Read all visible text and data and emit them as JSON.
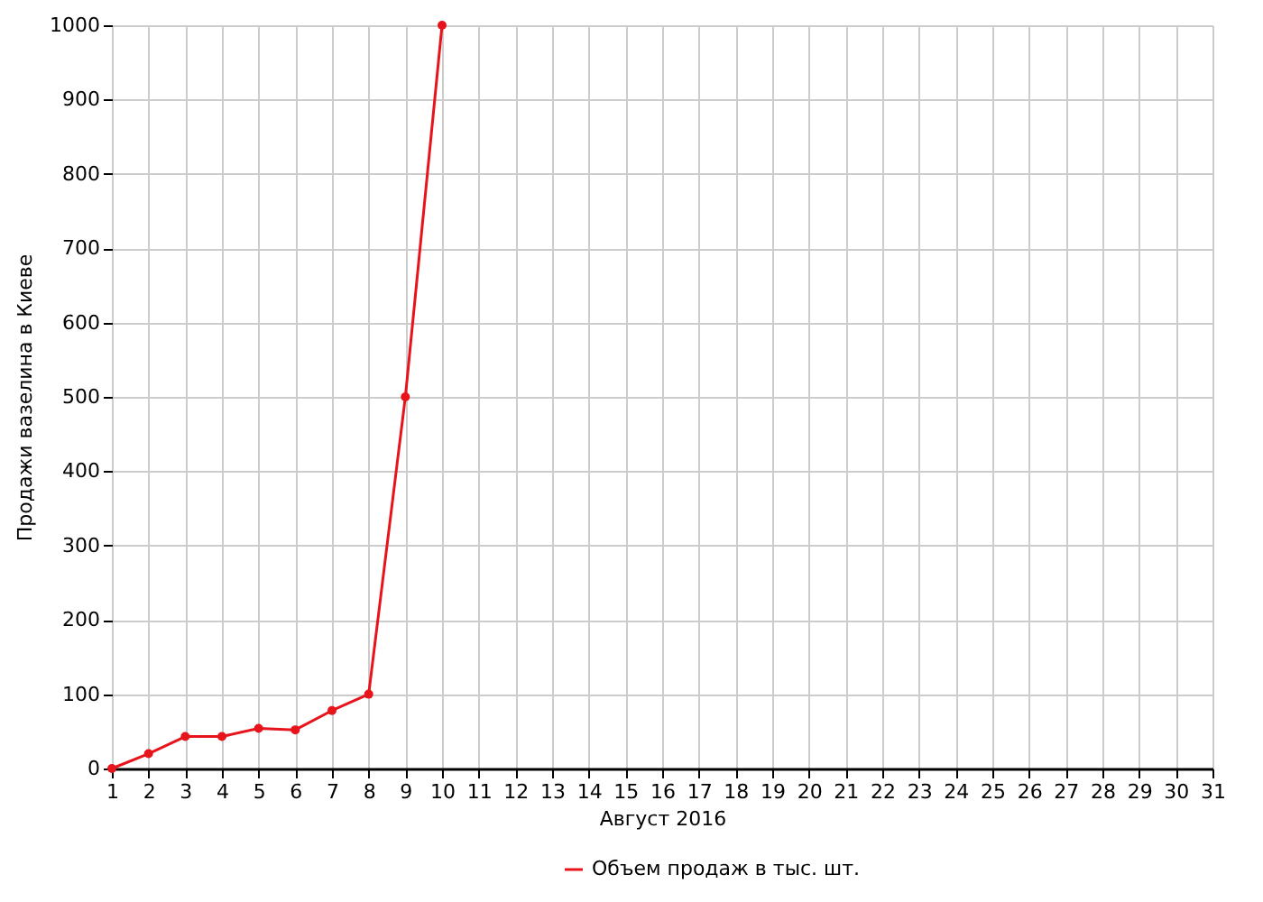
{
  "chart_data": {
    "type": "line",
    "xlabel": "Август 2016",
    "ylabel": "Продажи вазелина в Киеве",
    "x": [
      1,
      2,
      3,
      4,
      5,
      6,
      7,
      8,
      9,
      10
    ],
    "series": [
      {
        "name": "Объем продаж в тыс. шт.",
        "color": "#e8141b",
        "values": [
          0,
          20,
          43,
          43,
          54,
          52,
          78,
          100,
          500,
          1000
        ]
      }
    ],
    "xlim": [
      1,
      31
    ],
    "xticks": [
      1,
      2,
      3,
      4,
      5,
      6,
      7,
      8,
      9,
      10,
      11,
      12,
      13,
      14,
      15,
      16,
      17,
      18,
      19,
      20,
      21,
      22,
      23,
      24,
      25,
      26,
      27,
      28,
      29,
      30,
      31
    ],
    "ylim": [
      0,
      1000
    ],
    "yticks": [
      0,
      100,
      200,
      300,
      400,
      500,
      600,
      700,
      800,
      900,
      1000
    ],
    "grid": true,
    "legend": "bottom",
    "marker": "circle",
    "line_style": "solid"
  }
}
